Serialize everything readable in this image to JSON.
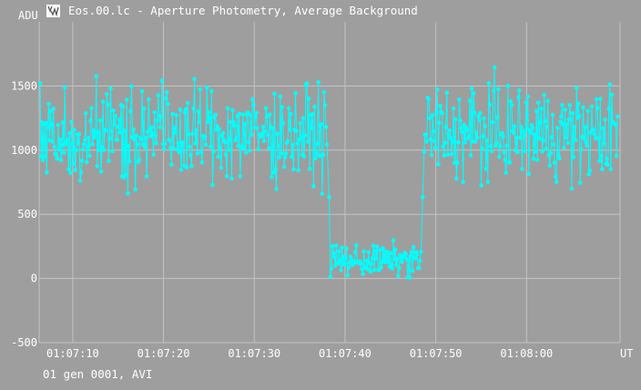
{
  "window": {
    "title": "Eos.00.lc - Aperture Photometry, Average Background",
    "icon": "lightcurve-app-icon"
  },
  "footer": {
    "status": "01 gen 0001, AVI"
  },
  "colors": {
    "background": "#9e9e9e",
    "grid": "#c4c4c4",
    "series": "#00ffff",
    "text": "#ffffff"
  },
  "chart_data": {
    "type": "line",
    "title": "",
    "ylabel": "ADU",
    "xlabel": "UT",
    "x_unit": "seconds",
    "xlim": [
      66.3,
      130.3
    ],
    "ylim": [
      -500,
      2000
    ],
    "yticks": [
      1500,
      1000,
      500,
      0,
      -500
    ],
    "xticks": [
      {
        "value": 70,
        "label": "01:07:10"
      },
      {
        "value": 80,
        "label": "01:07:20"
      },
      {
        "value": 90,
        "label": "01:07:30"
      },
      {
        "value": 100,
        "label": "01:07:40"
      },
      {
        "value": 110,
        "label": "01:07:50"
      },
      {
        "value": 120,
        "label": "01:08:00"
      }
    ],
    "grid": true,
    "markers": true,
    "segments": [
      {
        "x_start": 66.4,
        "x_end": 98.1,
        "mean": 1130,
        "spread": 330,
        "max": 1840,
        "min": 530
      },
      {
        "x_start": 98.4,
        "x_end": 108.4,
        "mean": 140,
        "spread": 110,
        "max": 400,
        "min": -120
      },
      {
        "x_start": 108.7,
        "x_end": 130.1,
        "mean": 1130,
        "spread": 330,
        "max": 1840,
        "min": 560
      }
    ]
  }
}
